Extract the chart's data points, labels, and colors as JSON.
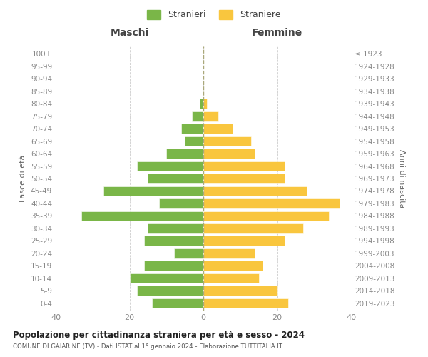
{
  "age_groups": [
    "0-4",
    "5-9",
    "10-14",
    "15-19",
    "20-24",
    "25-29",
    "30-34",
    "35-39",
    "40-44",
    "45-49",
    "50-54",
    "55-59",
    "60-64",
    "65-69",
    "70-74",
    "75-79",
    "80-84",
    "85-89",
    "90-94",
    "95-99",
    "100+"
  ],
  "birth_years": [
    "2019-2023",
    "2014-2018",
    "2009-2013",
    "2004-2008",
    "1999-2003",
    "1994-1998",
    "1989-1993",
    "1984-1988",
    "1979-1983",
    "1974-1978",
    "1969-1973",
    "1964-1968",
    "1959-1963",
    "1954-1958",
    "1949-1953",
    "1944-1948",
    "1939-1943",
    "1934-1938",
    "1929-1933",
    "1924-1928",
    "≤ 1923"
  ],
  "males": [
    14,
    18,
    20,
    16,
    8,
    16,
    15,
    33,
    12,
    27,
    15,
    18,
    10,
    5,
    6,
    3,
    1,
    0,
    0,
    0,
    0
  ],
  "females": [
    23,
    20,
    15,
    16,
    14,
    22,
    27,
    34,
    37,
    28,
    22,
    22,
    14,
    13,
    8,
    4,
    1,
    0,
    0,
    0,
    0
  ],
  "male_color": "#7ab648",
  "female_color": "#f9c63e",
  "male_label": "Stranieri",
  "female_label": "Straniere",
  "title": "Popolazione per cittadinanza straniera per età e sesso - 2024",
  "subtitle": "COMUNE DI GAIARINE (TV) - Dati ISTAT al 1° gennaio 2024 - Elaborazione TUTTITALIA.IT",
  "left_header": "Maschi",
  "right_header": "Femmine",
  "left_axis_label": "Fasce di età",
  "right_axis_label": "Anni di nascita",
  "xlim": 40,
  "background_color": "#ffffff",
  "grid_color": "#cccccc"
}
